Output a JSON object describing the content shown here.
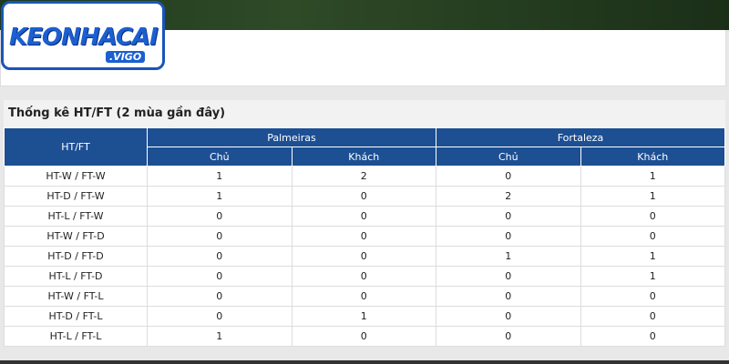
{
  "logo": {
    "brand": "KEONHACAI",
    "suffix": ".VIGO"
  },
  "section": {
    "title": "Thống kê HT/FT (2 mùa gần đây)"
  },
  "table": {
    "corner": "HT/FT",
    "teams": [
      "Palmeiras",
      "Fortaleza"
    ],
    "subheaders": [
      "Chủ",
      "Khách",
      "Chủ",
      "Khách"
    ],
    "rows": [
      [
        "HT-W / FT-W",
        1,
        2,
        0,
        1
      ],
      [
        "HT-D / FT-W",
        1,
        0,
        2,
        1
      ],
      [
        "HT-L / FT-W",
        0,
        0,
        0,
        0
      ],
      [
        "HT-W / FT-D",
        0,
        0,
        0,
        0
      ],
      [
        "HT-D / FT-D",
        0,
        0,
        1,
        1
      ],
      [
        "HT-L / FT-D",
        0,
        0,
        0,
        1
      ],
      [
        "HT-W / FT-L",
        0,
        0,
        0,
        0
      ],
      [
        "HT-D / FT-L",
        0,
        1,
        0,
        0
      ],
      [
        "HT-L / FT-L",
        1,
        0,
        0,
        0
      ]
    ]
  }
}
